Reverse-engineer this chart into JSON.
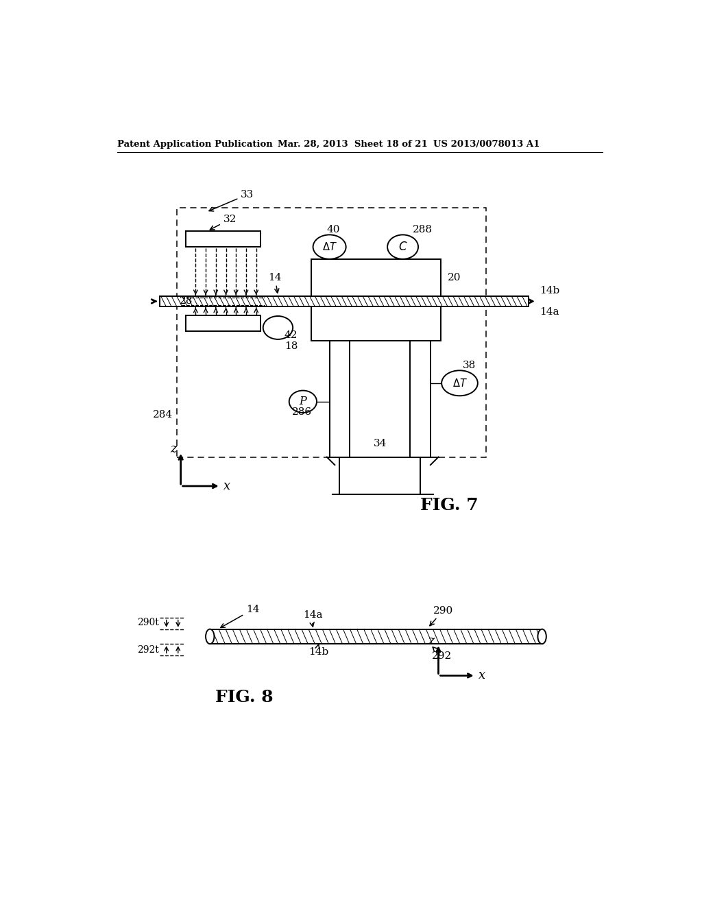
{
  "bg_color": "#ffffff",
  "header_left": "Patent Application Publication",
  "header_mid": "Mar. 28, 2013  Sheet 18 of 21",
  "header_right": "US 2013/0078013 A1",
  "fig7_label": "FIG. 7",
  "fig8_label": "FIG. 8"
}
